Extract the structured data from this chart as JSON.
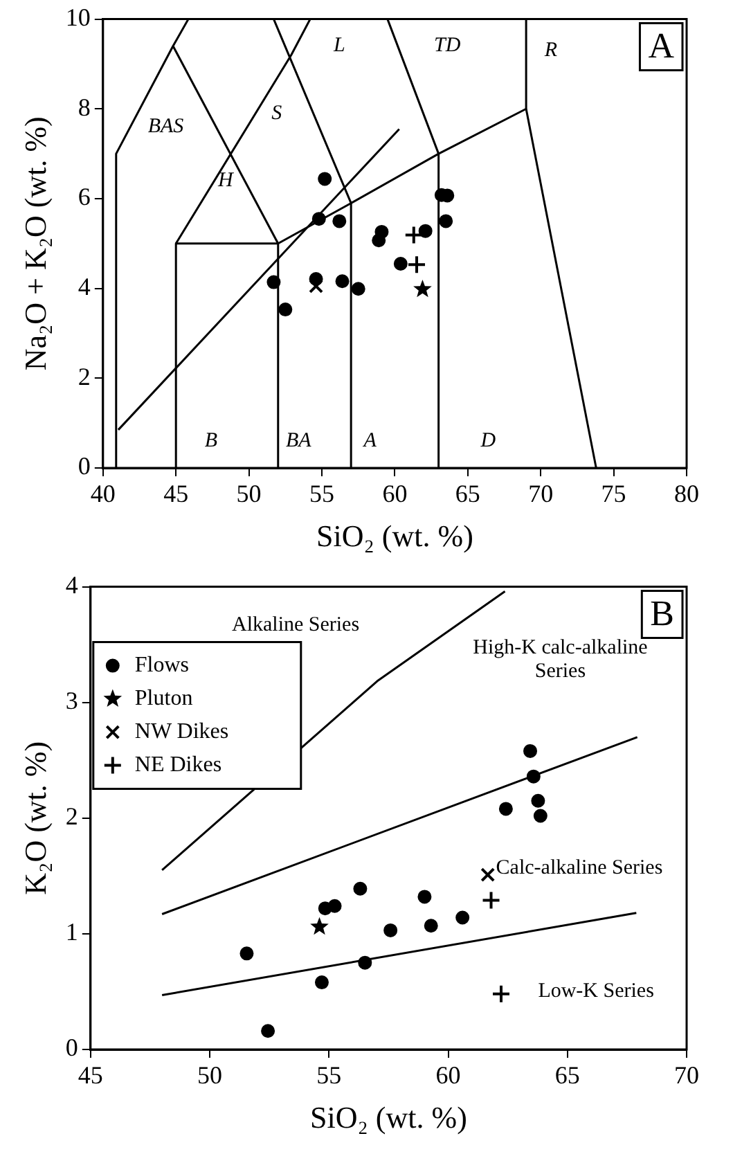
{
  "chart_data": [
    {
      "type": "scatter",
      "xlabel": "SiO₂ (wt. %)",
      "ylabel": "Na₂O + K₂O (wt. %)",
      "xlim": [
        40,
        80
      ],
      "ylim": [
        0,
        10
      ],
      "xticks": [
        40,
        45,
        50,
        55,
        60,
        65,
        70,
        75,
        80
      ],
      "yticks": [
        0,
        2,
        4,
        6,
        8,
        10
      ],
      "grid": false,
      "legend": false,
      "annotations": [
        "A",
        "BAS",
        "H",
        "S",
        "L",
        "TD",
        "R",
        "B",
        "BA",
        "A",
        "D"
      ],
      "series": [
        {
          "type": "scatter",
          "marker": "circle",
          "color": "#000000",
          "x": [
            55.2,
            54.8,
            56.2,
            59.1,
            58.9,
            62.1,
            63.2,
            63.6,
            63.5,
            60.4,
            51.7,
            52.5,
            54.6,
            56.4,
            57.5
          ],
          "values": [
            6.44,
            5.55,
            5.5,
            5.26,
            5.07,
            5.28,
            6.08,
            6.07,
            5.5,
            4.55,
            4.14,
            3.53,
            4.21,
            4.16,
            3.99
          ]
        },
        {
          "type": "scatter",
          "marker": "star",
          "color": "#000000",
          "x": [
            61.9
          ],
          "values": [
            3.98
          ]
        },
        {
          "type": "scatter",
          "marker": "x",
          "color": "#000000",
          "x": [
            54.6
          ],
          "values": [
            4.05
          ]
        },
        {
          "type": "scatter",
          "marker": "cross",
          "color": "#000000",
          "x": [
            61.3,
            61.5
          ],
          "values": [
            5.19,
            4.53
          ]
        },
        {
          "type": "line",
          "color": "#000000",
          "x": [
            41.05,
            60.3
          ],
          "values": [
            0.85,
            7.55
          ]
        },
        {
          "type": "line",
          "color": "#000000",
          "x": [
            40.9,
            40.9,
            44.8,
            45.85
          ],
          "values": [
            0,
            7,
            9.4,
            10
          ]
        },
        {
          "type": "line",
          "color": "#000000",
          "x": [
            45,
            45,
            52,
            52
          ],
          "values": [
            0,
            5,
            5,
            0
          ]
        },
        {
          "type": "line",
          "color": "#000000",
          "x": [
            45,
            52.9,
            54.2
          ],
          "values": [
            5,
            9.2,
            10
          ]
        },
        {
          "type": "line",
          "color": "#000000",
          "x": [
            44.8,
            52
          ],
          "values": [
            9.4,
            5
          ]
        },
        {
          "type": "line",
          "color": "#000000",
          "x": [
            52,
            57,
            63,
            69,
            69
          ],
          "values": [
            5,
            5.9,
            7,
            8,
            10
          ]
        },
        {
          "type": "line",
          "color": "#000000",
          "x": [
            57,
            57,
            51.7
          ],
          "values": [
            0,
            5.9,
            10
          ]
        },
        {
          "type": "line",
          "color": "#000000",
          "x": [
            63,
            63,
            59.5
          ],
          "values": [
            0,
            7,
            10
          ]
        },
        {
          "type": "line",
          "color": "#000000",
          "x": [
            69,
            73.8
          ],
          "values": [
            8,
            0
          ]
        }
      ]
    },
    {
      "type": "scatter",
      "xlabel": "SiO₂ (wt. %)",
      "ylabel": "K₂O (wt. %)",
      "xlim": [
        45,
        70
      ],
      "ylim": [
        0,
        4
      ],
      "xticks": [
        45,
        50,
        55,
        60,
        65,
        70
      ],
      "yticks": [
        0,
        1,
        2,
        3,
        4
      ],
      "grid": false,
      "legend": "top left",
      "annotations": [
        "B",
        "Alkaline Series",
        "High-K calc-alkaline Series",
        "Calc-alkaline Series",
        "Low-K Series"
      ],
      "series": [
        {
          "type": "scatter",
          "name": "Flows",
          "marker": "circle",
          "color": "#000000",
          "x": [
            63.44,
            63.58,
            63.77,
            63.87,
            62.42,
            56.31,
            54.84,
            55.24,
            59.01,
            57.58,
            59.28,
            60.6,
            51.55,
            56.51,
            54.7,
            52.44
          ],
          "values": [
            2.58,
            2.36,
            2.15,
            2.02,
            2.08,
            1.39,
            1.22,
            1.24,
            1.32,
            1.03,
            1.07,
            1.14,
            0.83,
            0.75,
            0.58,
            0.16
          ]
        },
        {
          "type": "scatter",
          "name": "Pluton",
          "marker": "star",
          "color": "#000000",
          "x": [
            54.6
          ],
          "values": [
            1.06
          ]
        },
        {
          "type": "scatter",
          "name": "NW Dikes",
          "marker": "x",
          "color": "#000000",
          "x": [
            61.66
          ],
          "values": [
            1.51
          ]
        },
        {
          "type": "scatter",
          "name": "NE Dikes",
          "marker": "cross",
          "color": "#000000",
          "x": [
            61.8,
            62.22
          ],
          "values": [
            1.29,
            0.48
          ]
        },
        {
          "type": "line",
          "color": "#000000",
          "x": [
            48,
            57.06,
            62.38
          ],
          "values": [
            1.55,
            3.19,
            3.96
          ]
        },
        {
          "type": "line",
          "color": "#000000",
          "x": [
            48,
            67.93
          ],
          "values": [
            1.17,
            2.7
          ]
        },
        {
          "type": "line",
          "color": "#000000",
          "x": [
            48,
            67.89
          ],
          "values": [
            0.47,
            1.18
          ]
        }
      ]
    }
  ]
}
